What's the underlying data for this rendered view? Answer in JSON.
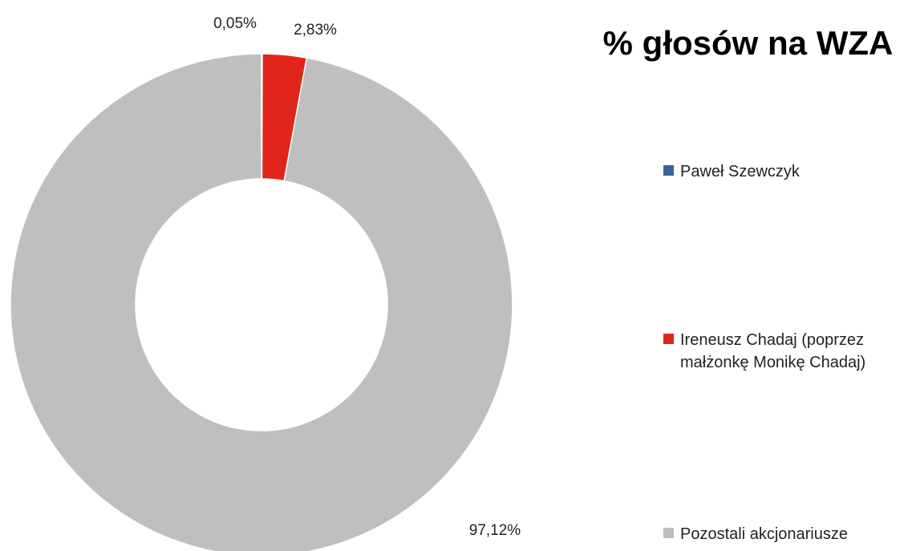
{
  "chart_data": {
    "type": "pie",
    "donut": true,
    "title": "% głosów na WZA",
    "slices": [
      {
        "name": "Paweł Szewczyk",
        "value": 0.05,
        "label": "0,05%",
        "color": "#3a6496"
      },
      {
        "name": "Ireneusz Chadaj (poprzez małżonkę Monikę Chadaj)",
        "value": 2.83,
        "label": "2,83%",
        "color": "#e0261a"
      },
      {
        "name": "Pozostali akcjonariusze",
        "value": 97.12,
        "label": "97,12%",
        "color": "#bfbfbf"
      }
    ],
    "legend_position": "right"
  }
}
